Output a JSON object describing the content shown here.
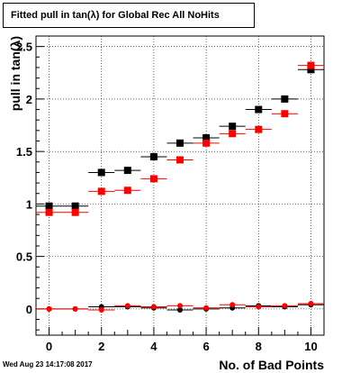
{
  "title": "Fitted pull in tan(λ) for Global Rec All NoHits",
  "date_stamp": "Wed Aug 23 14:17:08 2017",
  "chart_data": {
    "type": "scatter",
    "title": "Fitted pull in tan(λ) for Global Rec All NoHits",
    "xlabel": "No. of Bad Points",
    "ylabel": "pull in tan(λ)",
    "xlim": [
      -0.5,
      10.5
    ],
    "ylim": [
      -0.25,
      2.6
    ],
    "xticks": [
      0,
      2,
      4,
      6,
      8,
      10
    ],
    "yticks": [
      0,
      0.5,
      1,
      1.5,
      2,
      2.5
    ],
    "yticklabels": [
      "0",
      "0.5",
      "1",
      "1.5",
      "2",
      "2.5"
    ],
    "grid": true,
    "x_error": 0.5,
    "series": [
      {
        "color": "#000000",
        "marker": "square",
        "x": [
          0,
          1,
          2,
          3,
          4,
          5,
          6,
          7,
          8,
          9,
          10
        ],
        "y": [
          0.98,
          0.98,
          1.3,
          1.32,
          1.45,
          1.58,
          1.63,
          1.74,
          1.9,
          2.0,
          2.28
        ]
      },
      {
        "color": "#ff0000",
        "marker": "square",
        "x": [
          0,
          1,
          2,
          3,
          4,
          5,
          6,
          7,
          8,
          9,
          10
        ],
        "y": [
          0.92,
          0.92,
          1.12,
          1.13,
          1.24,
          1.42,
          1.58,
          1.67,
          1.71,
          1.86,
          2.32
        ]
      },
      {
        "color": "#000000",
        "marker": "circle",
        "x": [
          0,
          1,
          2,
          3,
          4,
          5,
          6,
          7,
          8,
          9,
          10
        ],
        "y": [
          0.0,
          0.0,
          0.02,
          0.02,
          0.01,
          -0.01,
          0.0,
          0.01,
          0.03,
          0.02,
          0.04
        ]
      },
      {
        "color": "#ff0000",
        "marker": "circle",
        "x": [
          0,
          1,
          2,
          3,
          4,
          5,
          6,
          7,
          8,
          9,
          10
        ],
        "y": [
          0.0,
          0.0,
          -0.01,
          0.03,
          0.02,
          0.03,
          0.01,
          0.04,
          0.02,
          0.03,
          0.05
        ]
      }
    ]
  }
}
